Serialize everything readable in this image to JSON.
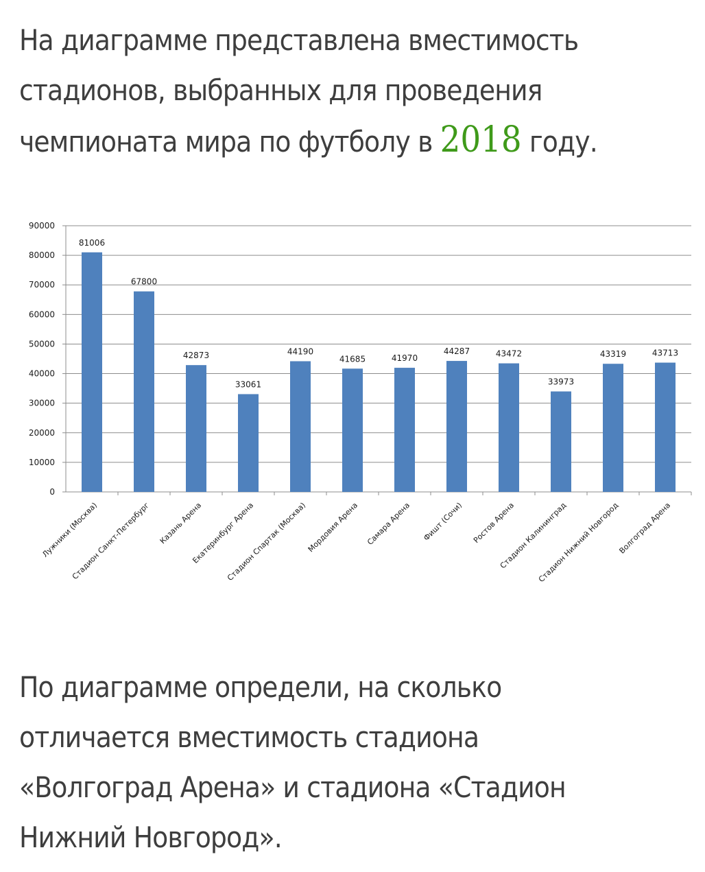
{
  "intro": {
    "line1": "На диаграмме представлена вместимость",
    "line2": "стадионов, выбранных для проведения",
    "line3_before": "чемпионата мира по футболу в ",
    "year": "2018",
    "line3_after": " году."
  },
  "question": {
    "line1": "По диаграмме определи, на сколько",
    "line2": "отличается вместимость стадиона",
    "line3": "«Волгоград Арена» и стадиона «Стадион",
    "line4": "Нижний Новгород»."
  },
  "colors": {
    "text": "#3e3e3e",
    "year_highlight": "#3f9a1a",
    "bar_fill": "#4f81bd",
    "gridline": "#8c8c8c"
  },
  "chart_data": {
    "type": "bar",
    "categories": [
      "Лужники (Москва)",
      "Стадион Санкт-Петербург",
      "Казань Арена",
      "Екатеринбург Арена",
      "Стадион Спартак (Москва)",
      "Мордовия Арена",
      "Самара Арена",
      "Фишт (Сочи)",
      "Ростов Арена",
      "Стадион Калининград",
      "Стадион Нижний Новгород",
      "Волгоград Арена"
    ],
    "values": [
      81006,
      67800,
      42873,
      33061,
      44190,
      41685,
      41970,
      44287,
      43472,
      33973,
      43319,
      43713
    ],
    "ylim": [
      0,
      90000
    ],
    "yticks": [
      0,
      10000,
      20000,
      30000,
      40000,
      50000,
      60000,
      70000,
      80000,
      90000
    ],
    "grid": true,
    "data_labels": true,
    "legend": "none"
  }
}
